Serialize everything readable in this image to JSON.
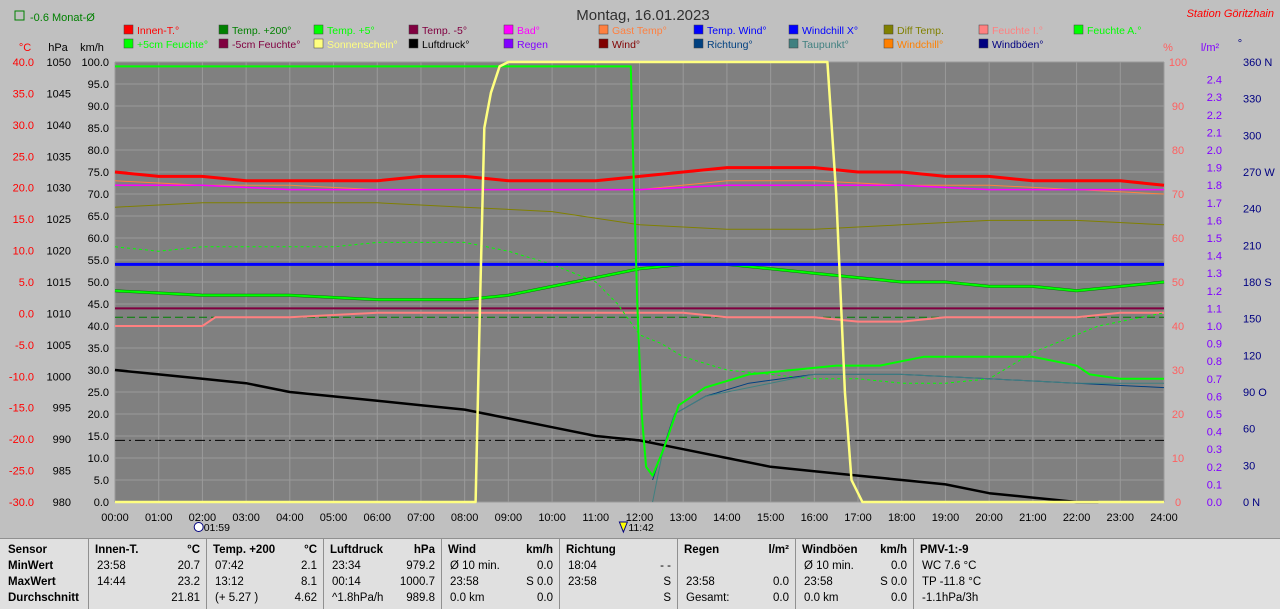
{
  "header": {
    "title": "Montag, 16.01.2023",
    "station": "Station Göritzhain",
    "month_label": "-0.6 Monat-Ø"
  },
  "legend": [
    {
      "label": "Innen-T.°",
      "color": "#ff0000"
    },
    {
      "label": "Temp. +200°",
      "color": "#008000"
    },
    {
      "label": "Temp. +5°",
      "color": "#00ff00"
    },
    {
      "label": "Temp. -5°",
      "color": "#800040"
    },
    {
      "label": "Bad°",
      "color": "#ff00ff"
    },
    {
      "label": "Gast Temp°",
      "color": "#ff8040"
    },
    {
      "label": "Temp. Wind°",
      "color": "#0000ff"
    },
    {
      "label": "Windchill X°",
      "color": "#0000ff"
    },
    {
      "label": "Diff Temp.",
      "color": "#808000"
    },
    {
      "label": "Feuchte I.°",
      "color": "#ff8080"
    },
    {
      "label": "Feuchte A.°",
      "color": "#00ff00"
    },
    {
      "label": "+5cm Feuchte°",
      "color": "#00ff00"
    },
    {
      "label": "-5cm Feuchte°",
      "color": "#800040"
    },
    {
      "label": "Sonnenschein°",
      "color": "#ffff80"
    },
    {
      "label": "Luftdruck°",
      "color": "#000000"
    },
    {
      "label": "Regen",
      "color": "#8000ff"
    },
    {
      "label": "Wind°",
      "color": "#800000"
    },
    {
      "label": "Richtung°",
      "color": "#004080"
    },
    {
      "label": "Taupunkt°",
      "color": "#408080"
    },
    {
      "label": "Windchill°",
      "color": "#ff8000"
    },
    {
      "label": "Windböen°",
      "color": "#000080"
    }
  ],
  "axes": {
    "unit_celsius": "°C",
    "unit_hpa": "hPa",
    "unit_kmh": "km/h",
    "unit_percent": "%",
    "unit_rain": "l/m²",
    "unit_deg": "°",
    "celsius": [
      "40.0",
      "35.0",
      "30.0",
      "25.0",
      "20.0",
      "15.0",
      "10.0",
      "5.0",
      "0.0",
      "-5.0",
      "-10.0",
      "-15.0",
      "-20.0",
      "-25.0",
      "-30.0"
    ],
    "hpa": [
      "1050",
      "1045",
      "1040",
      "1035",
      "1030",
      "1025",
      "1020",
      "1015",
      "1010",
      "1005",
      "1000",
      "995",
      "990",
      "985",
      "980"
    ],
    "kmh": [
      "100.0",
      "95.0",
      "90.0",
      "85.0",
      "80.0",
      "75.0",
      "70.0",
      "65.0",
      "60.0",
      "55.0",
      "50.0",
      "45.0",
      "40.0",
      "35.0",
      "30.0",
      "25.0",
      "20.0",
      "15.0",
      "10.0",
      "5.0",
      "0.0"
    ],
    "percent": [
      "100",
      "90",
      "80",
      "70",
      "60",
      "50",
      "40",
      "30",
      "20",
      "10",
      "0"
    ],
    "rain": [
      "2.4",
      "2.3",
      "2.2",
      "2.1",
      "2.0",
      "1.9",
      "1.8",
      "1.7",
      "1.6",
      "1.5",
      "1.4",
      "1.3",
      "1.2",
      "1.1",
      "1.0",
      "0.9",
      "0.8",
      "0.7",
      "0.6",
      "0.5",
      "0.4",
      "0.3",
      "0.2",
      "0.1",
      "0.0"
    ],
    "direction": [
      "360 N",
      "330",
      "300",
      "270 W",
      "240",
      "210",
      "180 S",
      "150",
      "120",
      "90 O",
      "60",
      "30",
      "0 N"
    ],
    "time": [
      "00:00",
      "01:00",
      "02:00",
      "03:00",
      "04:00",
      "05:00",
      "06:00",
      "07:00",
      "08:00",
      "09:00",
      "10:00",
      "11:00",
      "12:00",
      "13:00",
      "14:00",
      "15:00",
      "16:00",
      "17:00",
      "18:00",
      "19:00",
      "20:00",
      "21:00",
      "22:00",
      "23:00",
      "24:00"
    ],
    "sunrise": "01:59",
    "noon": "11:42"
  },
  "chart_data": {
    "type": "line",
    "title": "Montag, 16.01.2023",
    "x_unit": "hours",
    "xlim": [
      0,
      24
    ],
    "left_axis": {
      "unit": "km/h",
      "ylim": [
        0,
        100
      ]
    },
    "series": [
      {
        "name": "Sonnenschein°",
        "color": "#ffff80",
        "width": 2.5,
        "x": [
          0,
          8.25,
          8.35,
          8.45,
          8.6,
          8.8,
          9.0,
          11.8,
          16.0,
          16.3,
          16.5,
          16.7,
          16.85,
          17.1,
          24
        ],
        "y": [
          0,
          0,
          45,
          85,
          93,
          99,
          100,
          100,
          100,
          100,
          70,
          25,
          5,
          0,
          0
        ]
      },
      {
        "name": "Feuchte A.°",
        "color": "#00ff00",
        "width": 2,
        "x": [
          0,
          11.8,
          11.85,
          11.95,
          12.05,
          12.15,
          12.3,
          12.55,
          12.9,
          13.5,
          14.5,
          15.5,
          16.5,
          17.5,
          18.5,
          19.5,
          20.5,
          21.0,
          21.5,
          22.0,
          22.3,
          23.0,
          24.0
        ],
        "y": [
          99,
          99,
          80,
          45,
          20,
          8,
          6,
          12,
          22,
          26,
          29,
          30,
          31,
          31,
          33,
          33,
          33,
          33,
          32,
          31,
          29,
          28,
          28
        ]
      },
      {
        "name": "Innen-T.°",
        "color": "#ff0000",
        "width": 3,
        "x": [
          0,
          1,
          2,
          3,
          4,
          5,
          6,
          7,
          8,
          9,
          10,
          11,
          12,
          13,
          14,
          15,
          16,
          17,
          18,
          19,
          20,
          21,
          22,
          23,
          24
        ],
        "y": [
          75,
          74,
          74,
          73,
          73,
          73,
          73,
          74,
          74,
          73,
          73,
          73,
          74,
          75,
          76,
          76,
          76,
          75,
          75,
          74,
          74,
          73,
          73,
          73,
          72
        ]
      },
      {
        "name": "Bad°",
        "color": "#ff00ff",
        "width": 1.5,
        "x": [
          0,
          2,
          4,
          6,
          8,
          10,
          12,
          14,
          16,
          18,
          20,
          22,
          24
        ],
        "y": [
          72,
          72,
          71,
          71,
          71,
          71,
          71,
          72,
          72,
          72,
          71,
          71,
          71
        ]
      },
      {
        "name": "Gast Temp°",
        "color": "#ff8040",
        "width": 1,
        "x": [
          0,
          2,
          4,
          6,
          8,
          10,
          12,
          14,
          16,
          18,
          20,
          22,
          24
        ],
        "y": [
          73,
          72,
          72,
          71,
          71,
          71,
          71,
          73,
          73,
          72,
          72,
          71,
          70
        ]
      },
      {
        "name": "Diff Temp.",
        "color": "#808000",
        "width": 1,
        "x": [
          0,
          2,
          4,
          6,
          8,
          10,
          12,
          14,
          16,
          18,
          20,
          22,
          24
        ],
        "y": [
          67,
          68,
          68,
          68,
          67,
          66,
          63,
          62,
          62,
          63,
          64,
          64,
          63
        ]
      },
      {
        "name": "Temp. +200°",
        "color": "#008000",
        "width": 3,
        "x": [
          0,
          2,
          4,
          6,
          8,
          9,
          10,
          11,
          12,
          13,
          14,
          15,
          16,
          17,
          18,
          19,
          20,
          21,
          22,
          23,
          24
        ],
        "y": [
          48,
          47,
          47,
          46,
          46,
          47,
          49,
          51,
          53,
          54,
          54,
          53,
          52,
          51,
          50,
          50,
          49,
          49,
          48,
          49,
          50
        ]
      },
      {
        "name": "Temp. +5°",
        "color": "#00ff00",
        "width": 2,
        "x": [
          0,
          2,
          4,
          6,
          8,
          9,
          10,
          11,
          12,
          13,
          14,
          15,
          16,
          17,
          18,
          19,
          20,
          21,
          22,
          23,
          24
        ],
        "y": [
          48,
          47,
          47,
          46,
          46,
          47,
          49,
          51,
          53,
          54,
          54,
          53,
          52,
          51,
          50,
          50,
          49,
          49,
          48,
          49,
          50
        ]
      },
      {
        "name": "+5cm Feuchte°",
        "color": "#00ff00",
        "width": 1,
        "dash": "3,3",
        "x": [
          0,
          1,
          2,
          3,
          4,
          5,
          6,
          7,
          8,
          9,
          10,
          11,
          11.5,
          12,
          12.5,
          13,
          14,
          15,
          16,
          17,
          18,
          19,
          20,
          20.5,
          21,
          21.5,
          22,
          22.5,
          23,
          24
        ],
        "y": [
          58,
          57,
          58,
          58,
          58,
          58,
          59,
          59,
          59,
          57,
          54,
          50,
          45,
          38,
          36,
          33,
          30,
          29,
          28,
          28,
          27,
          27,
          28,
          31,
          34,
          36,
          38,
          40,
          41,
          43
        ]
      },
      {
        "name": "Feuchte I.°",
        "color": "#ff8080",
        "width": 2,
        "x": [
          0,
          2,
          2.3,
          4,
          6,
          8,
          10,
          11.5,
          12,
          12.5,
          13,
          14,
          15,
          16,
          17,
          18,
          19,
          20,
          21,
          22,
          23,
          24
        ],
        "y": [
          40,
          40,
          42,
          42,
          43,
          43,
          43,
          43,
          43,
          43,
          43,
          42,
          42,
          42,
          41,
          41,
          42,
          42,
          42,
          42,
          43,
          43
        ]
      },
      {
        "name": "Temp. Wind°",
        "color": "#0000ff",
        "width": 3,
        "x": [
          0,
          24
        ],
        "y": [
          54,
          54
        ]
      },
      {
        "name": "Temp. -5°",
        "color": "#800040",
        "width": 2,
        "x": [
          0,
          24
        ],
        "y": [
          44,
          44
        ]
      },
      {
        "name": "-5cm Feuchte°",
        "color": "#008000",
        "width": 1,
        "dash": "8,4",
        "x": [
          0,
          24
        ],
        "y": [
          42,
          42
        ]
      },
      {
        "name": "Luftdruck°",
        "color": "#000000",
        "width": 2.5,
        "x": [
          0,
          1,
          2,
          3,
          4,
          5,
          6,
          7,
          8,
          9,
          10,
          11,
          12,
          13,
          14,
          15,
          16,
          17,
          18,
          19,
          20,
          21,
          22,
          22.5
        ],
        "y": [
          30,
          29,
          28,
          27,
          25,
          24,
          23,
          22,
          21,
          19,
          17,
          15,
          14,
          12,
          10,
          8,
          7,
          6,
          5,
          4,
          2,
          1,
          0,
          0
        ]
      },
      {
        "name": "Richtung°",
        "color": "#004080",
        "width": 1,
        "x": [
          12.3,
          12.8,
          13.5,
          14.5,
          16,
          18,
          20,
          22,
          24
        ],
        "y": [
          5,
          20,
          24,
          27,
          29,
          29,
          28,
          27,
          26
        ]
      },
      {
        "name": "Taupunkt°",
        "color": "#408080",
        "width": 1,
        "x": [
          12.3,
          12.5,
          12.8,
          13.5,
          14.5,
          16,
          18,
          20,
          22,
          24
        ],
        "y": [
          0,
          10,
          20,
          24,
          26,
          29,
          29,
          28,
          27,
          27
        ]
      }
    ],
    "reference_lines": [
      {
        "y": 14,
        "style": "dash-dot",
        "color": "#000000"
      }
    ]
  },
  "stats": {
    "row_labels": [
      "Sensor",
      "MinWert",
      "MaxWert",
      "Durchschnitt"
    ],
    "columns": [
      {
        "name": "Innen-T.",
        "unit": "°C",
        "rows": [
          [
            "23:58",
            "20.7"
          ],
          [
            "14:44",
            "23.2"
          ],
          [
            "",
            "21.81"
          ]
        ]
      },
      {
        "name": "Temp. +200",
        "unit": "°C",
        "rows": [
          [
            "07:42",
            "2.1"
          ],
          [
            "13:12",
            "8.1"
          ],
          [
            "(+ 5.27 )",
            "4.62"
          ]
        ]
      },
      {
        "name": "Luftdruck",
        "unit": "hPa",
        "rows": [
          [
            "23:34",
            "979.2"
          ],
          [
            "00:14",
            "1000.7"
          ],
          [
            "^1.8hPa/h",
            "989.8"
          ]
        ]
      },
      {
        "name": "Wind",
        "unit": "km/h",
        "rows": [
          [
            "Ø 10 min.",
            "0.0"
          ],
          [
            "23:58",
            "S 0.0"
          ],
          [
            "0.0 km",
            "0.0"
          ]
        ]
      },
      {
        "name": "Richtung",
        "unit": "",
        "rows": [
          [
            "18:04",
            "- -"
          ],
          [
            "23:58",
            "S"
          ],
          [
            "",
            "S"
          ]
        ]
      },
      {
        "name": "Regen",
        "unit": "l/m²",
        "rows": [
          [
            "",
            ""
          ],
          [
            "23:58",
            "0.0"
          ],
          [
            "Gesamt:",
            "0.0"
          ]
        ]
      },
      {
        "name": "Windböen",
        "unit": "km/h",
        "rows": [
          [
            "Ø 10 min.",
            "0.0"
          ],
          [
            "23:58",
            "S 0.0"
          ],
          [
            "0.0 km",
            "0.0"
          ]
        ]
      },
      {
        "name": "PMV-1:-9",
        "unit": "",
        "rows": [
          [
            "WC 7.6 °C",
            ""
          ],
          [
            "TP -11.8 °C",
            ""
          ],
          [
            "-1.1hPa/3h",
            ""
          ]
        ]
      }
    ]
  }
}
